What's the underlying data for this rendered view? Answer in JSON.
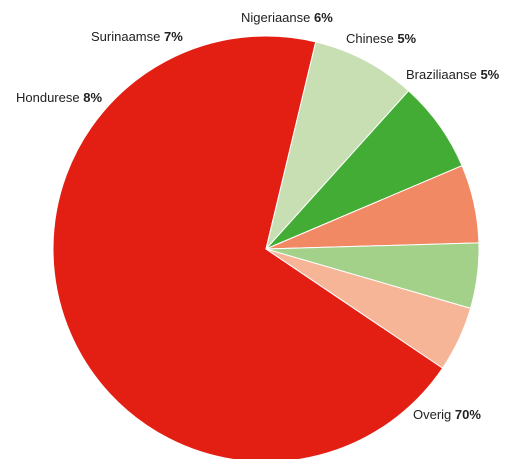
{
  "chart_data": {
    "type": "pie",
    "title": "",
    "slices": [
      {
        "label": "Overig",
        "value": 70,
        "value_text": "70%",
        "color": "#e31e12"
      },
      {
        "label": "Hondurese",
        "value": 8,
        "value_text": "8%",
        "color": "#c7dfb3"
      },
      {
        "label": "Surinaamse",
        "value": 7,
        "value_text": "7%",
        "color": "#42ac35"
      },
      {
        "label": "Nigeriaanse",
        "value": 6,
        "value_text": "6%",
        "color": "#f18a64"
      },
      {
        "label": "Chinese",
        "value": 5,
        "value_text": "5%",
        "color": "#a3d18a"
      },
      {
        "label": "Braziliaanse",
        "value": 5,
        "value_text": "5%",
        "color": "#f6b597"
      }
    ],
    "start_angle_deg": 124,
    "direction": "clockwise"
  }
}
